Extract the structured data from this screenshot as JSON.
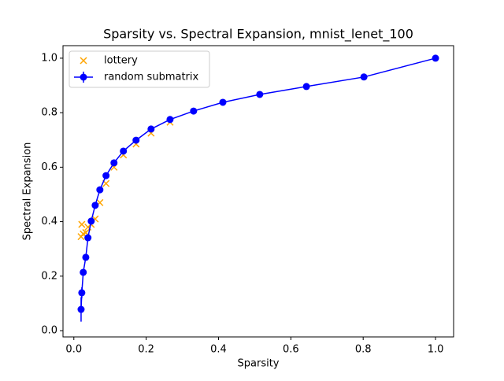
{
  "chart_data": {
    "type": "scatter",
    "title": "Sparsity vs. Spectral Expansion, mnist_lenet_100",
    "x_label": "Sparsity",
    "y_label": "Spectral Expansion",
    "xlim": [
      -0.03,
      1.05
    ],
    "ylim": [
      -0.023,
      1.046
    ],
    "xticks": [
      {
        "value": 0,
        "label": "0.0"
      },
      {
        "value": 0.2,
        "label": "0.2"
      },
      {
        "value": 0.4,
        "label": "0.4"
      },
      {
        "value": 0.6,
        "label": "0.6"
      },
      {
        "value": 0.8,
        "label": "0.8"
      },
      {
        "value": 1,
        "label": "1.0"
      }
    ],
    "yticks": [
      {
        "value": 0,
        "label": "0.0"
      },
      {
        "value": 0.2,
        "label": "0.2"
      },
      {
        "value": 0.4,
        "label": "0.4"
      },
      {
        "value": 0.6,
        "label": "0.6"
      },
      {
        "value": 0.8,
        "label": "0.8"
      },
      {
        "value": 1,
        "label": "1.0"
      }
    ],
    "legend": "upper left",
    "series": [
      {
        "name": "lottery",
        "color": "#ffa500",
        "marker": "x",
        "x": [
          0.02,
          0.022,
          0.026,
          0.033,
          0.039,
          0.048,
          0.059,
          0.072,
          0.089,
          0.111,
          0.137,
          0.172,
          0.2135,
          0.266
        ],
        "values": [
          0.345,
          0.39,
          0.355,
          0.36,
          0.38,
          0.39,
          0.41,
          0.47,
          0.54,
          0.6,
          0.645,
          0.685,
          0.725,
          0.765
        ]
      },
      {
        "name": "random submatrix",
        "color": "#0000ff",
        "marker": "o",
        "x": [
          0.02,
          0.022,
          0.026,
          0.033,
          0.039,
          0.048,
          0.059,
          0.072,
          0.089,
          0.111,
          0.137,
          0.172,
          0.2135,
          0.266,
          0.331,
          0.412,
          0.514,
          0.643,
          0.802,
          1.0
        ],
        "values": [
          0.078,
          0.139,
          0.214,
          0.269,
          0.341,
          0.402,
          0.46,
          0.517,
          0.569,
          0.616,
          0.659,
          0.699,
          0.74,
          0.775,
          0.806,
          0.838,
          0.867,
          0.896,
          0.931,
          1.0
        ],
        "errors": [
          0.045,
          0.02,
          0.01,
          0.005,
          0.005,
          0.005,
          0,
          0,
          0,
          0,
          0,
          0,
          0,
          0,
          0,
          0,
          0,
          0,
          0,
          0
        ]
      }
    ]
  }
}
